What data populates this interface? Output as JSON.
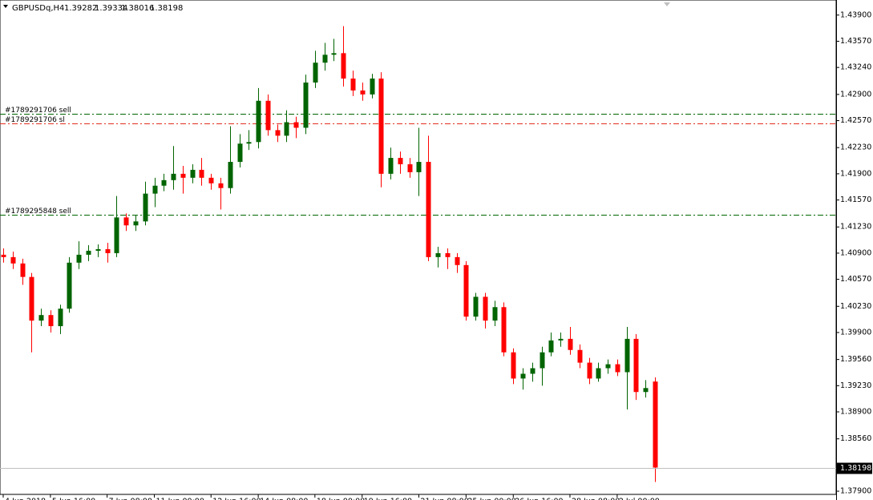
{
  "chart_data": {
    "type": "candlestick",
    "title": "GBPUSDq,H4",
    "up_color": "#006400",
    "down_color": "#ff0000",
    "open": [
      1.4088,
      1.4085,
      1.4077,
      1.406,
      1.4005,
      1.4012,
      1.3998,
      1.402,
      1.4078,
      1.4088,
      1.4093,
      1.4095,
      1.409,
      1.4135,
      1.4125,
      1.413,
      1.4165,
      1.4175,
      1.4182,
      1.419,
      1.4185,
      1.4195,
      1.4185,
      1.4178,
      1.4172,
      1.4205,
      1.4228,
      1.423,
      1.4282,
      1.4245,
      1.4238,
      1.4255,
      1.4248,
      1.4305,
      1.433,
      1.434,
      1.4342,
      1.431,
      1.4295,
      1.429,
      1.431,
      1.419,
      1.421,
      1.4202,
      1.4192,
      1.4205,
      1.4085,
      1.409,
      1.4085,
      1.4075,
      1.401,
      1.4035,
      1.4005,
      1.4022,
      1.3965,
      1.3932,
      1.3938,
      1.3945,
      1.3965,
      1.398,
      1.3982,
      1.3968,
      1.3952,
      1.3932,
      1.3945,
      1.395,
      1.394,
      1.3982,
      1.3915,
      1.39282
    ],
    "high": [
      1.4096,
      1.4092,
      1.4083,
      1.4065,
      1.402,
      1.4018,
      1.4025,
      1.4085,
      1.4105,
      1.41,
      1.4101,
      1.4103,
      1.4162,
      1.414,
      1.4138,
      1.418,
      1.4185,
      1.419,
      1.4225,
      1.42,
      1.4202,
      1.421,
      1.419,
      1.4185,
      1.425,
      1.424,
      1.4245,
      1.4298,
      1.429,
      1.4252,
      1.427,
      1.4262,
      1.4315,
      1.4345,
      1.4355,
      1.436,
      1.4376,
      1.432,
      1.4305,
      1.4316,
      1.4318,
      1.4223,
      1.4218,
      1.421,
      1.4248,
      1.4238,
      1.4098,
      1.4096,
      1.409,
      1.408,
      1.404,
      1.404,
      1.403,
      1.4028,
      1.397,
      1.3945,
      1.3952,
      1.3972,
      1.399,
      1.399,
      1.3997,
      1.3975,
      1.3958,
      1.3952,
      1.3956,
      1.3956,
      1.3997,
      1.3988,
      1.393,
      1.39334
    ],
    "low": [
      1.4078,
      1.407,
      1.405,
      1.3965,
      1.3998,
      1.399,
      1.3988,
      1.4015,
      1.407,
      1.408,
      1.4085,
      1.4078,
      1.4085,
      1.4118,
      1.4118,
      1.4125,
      1.4148,
      1.4168,
      1.417,
      1.4165,
      1.4178,
      1.4175,
      1.417,
      1.4145,
      1.4165,
      1.4198,
      1.422,
      1.4222,
      1.4238,
      1.423,
      1.423,
      1.4235,
      1.424,
      1.4298,
      1.432,
      1.4332,
      1.43,
      1.4288,
      1.4282,
      1.4285,
      1.4173,
      1.4183,
      1.419,
      1.4185,
      1.4162,
      1.408,
      1.4072,
      1.407,
      1.4065,
      1.4005,
      1.4005,
      1.3995,
      1.3998,
      1.396,
      1.3925,
      1.3918,
      1.3928,
      1.3923,
      1.396,
      1.3972,
      1.3962,
      1.3945,
      1.3925,
      1.3928,
      1.3938,
      1.3935,
      1.3893,
      1.3905,
      1.3908,
      1.38016
    ],
    "close": [
      1.4085,
      1.4077,
      1.406,
      1.4005,
      1.4012,
      1.3998,
      1.402,
      1.4078,
      1.4088,
      1.4093,
      1.4095,
      1.409,
      1.4135,
      1.4125,
      1.413,
      1.4165,
      1.4175,
      1.4182,
      1.419,
      1.4185,
      1.4195,
      1.4185,
      1.4178,
      1.4172,
      1.4205,
      1.4228,
      1.423,
      1.4282,
      1.4245,
      1.4238,
      1.4255,
      1.4248,
      1.4305,
      1.433,
      1.434,
      1.4342,
      1.431,
      1.4295,
      1.429,
      1.431,
      1.419,
      1.421,
      1.4202,
      1.4192,
      1.4205,
      1.4085,
      1.409,
      1.4085,
      1.4075,
      1.401,
      1.4035,
      1.4005,
      1.4022,
      1.3965,
      1.3932,
      1.3938,
      1.3945,
      1.3965,
      1.398,
      1.3982,
      1.3968,
      1.3952,
      1.3932,
      1.3945,
      1.395,
      1.394,
      1.3982,
      1.3915,
      1.392,
      1.38198
    ],
    "categories": [
      "4 Jun 2018",
      null,
      null,
      null,
      null,
      "5 Jun 16:00",
      null,
      null,
      null,
      null,
      null,
      "7 Jun 08:00",
      null,
      null,
      null,
      null,
      "11 Jun 00:00",
      null,
      null,
      null,
      null,
      null,
      "12 Jun 16:00",
      null,
      null,
      null,
      null,
      "14 Jun 08:00",
      null,
      null,
      null,
      null,
      null,
      "18 Jun 00:00",
      null,
      null,
      null,
      null,
      "19 Jun 16:00",
      null,
      null,
      null,
      null,
      null,
      "21 Jun 08:00",
      null,
      null,
      null,
      null,
      "25 Jun 00:00",
      null,
      null,
      null,
      null,
      "26 Jun 16:00",
      null,
      null,
      null,
      null,
      null,
      "28 Jun 08:00",
      null,
      null,
      null,
      null,
      "2 Jul 00:00",
      null,
      null,
      null,
      null
    ],
    "ylim": [
      1.3786,
      1.4409
    ],
    "yticks": [
      {
        "value": 1.439,
        "label": "1.43900"
      },
      {
        "value": 1.4357,
        "label": "1.43570"
      },
      {
        "value": 1.4324,
        "label": "1.43240"
      },
      {
        "value": 1.429,
        "label": "1.42900"
      },
      {
        "value": 1.4257,
        "label": "1.42570"
      },
      {
        "value": 1.4223,
        "label": "1.42230"
      },
      {
        "value": 1.419,
        "label": "1.41900"
      },
      {
        "value": 1.4157,
        "label": "1.41570"
      },
      {
        "value": 1.4123,
        "label": "1.41230"
      },
      {
        "value": 1.409,
        "label": "1.40900"
      },
      {
        "value": 1.4057,
        "label": "1.40570"
      },
      {
        "value": 1.4023,
        "label": "1.40230"
      },
      {
        "value": 1.399,
        "label": "1.39900"
      },
      {
        "value": 1.3956,
        "label": "1.39560"
      },
      {
        "value": 1.3923,
        "label": "1.39230"
      },
      {
        "value": 1.389,
        "label": "1.38900"
      },
      {
        "value": 1.3856,
        "label": "1.38560"
      },
      {
        "value": 1.379,
        "label": "1.37900"
      }
    ],
    "orders": [
      {
        "label": "#1789291706 sell",
        "price": 1.42658,
        "color": "#006400"
      },
      {
        "label": "#1789291706 sl",
        "price": 1.42536,
        "color": "#e0301e"
      },
      {
        "label": "#1789295848 sell",
        "price": 1.41385,
        "color": "#006400"
      }
    ],
    "price_line_color": "#c0c0c0"
  }
}
